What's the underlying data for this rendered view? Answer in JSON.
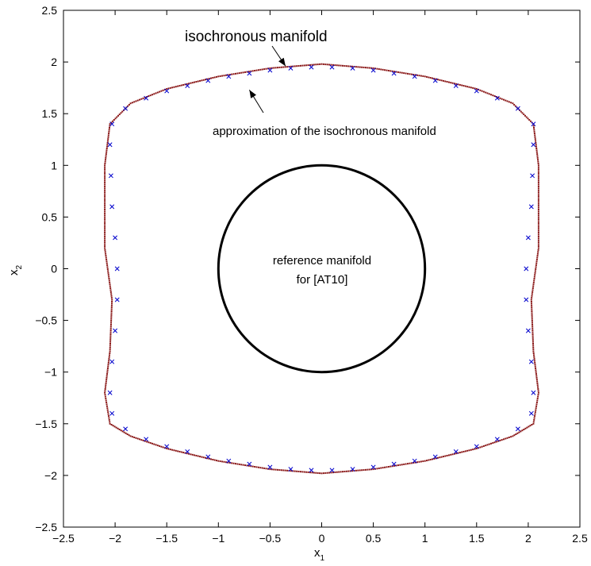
{
  "chart_data": {
    "type": "scatter",
    "title": "",
    "xlabel": "x",
    "xlabel_sub": "1",
    "ylabel": "x",
    "ylabel_sub": "2",
    "xlim": [
      -2.5,
      2.5
    ],
    "ylim": [
      -2.5,
      2.5
    ],
    "xticks": [
      -2.5,
      -2,
      -1.5,
      -1,
      -0.5,
      0,
      0.5,
      1,
      1.5,
      2,
      2.5
    ],
    "yticks": [
      -2.5,
      -2,
      -1.5,
      -1,
      -0.5,
      0,
      0.5,
      1,
      1.5,
      2,
      2.5
    ],
    "xtick_labels": [
      "−2.5",
      "−2",
      "−1.5",
      "−1",
      "−0.5",
      "0",
      "0.5",
      "1",
      "1.5",
      "2",
      "2.5"
    ],
    "ytick_labels": [
      "−2.5",
      "−2",
      "−1.5",
      "−1",
      "−0.5",
      "0",
      "0.5",
      "1",
      "1.5",
      "2",
      "2.5"
    ],
    "grid": false,
    "legend": "none",
    "series": [
      {
        "marker": "dot",
        "color": "#8b1a1a",
        "outline": [
          [
            2.1,
            0.2
          ],
          [
            2.1,
            1.0
          ],
          [
            2.05,
            1.4
          ],
          [
            1.85,
            1.6
          ],
          [
            1.5,
            1.74
          ],
          [
            1.0,
            1.86
          ],
          [
            0.5,
            1.94
          ],
          [
            0.0,
            1.98
          ],
          [
            -0.5,
            1.94
          ],
          [
            -1.0,
            1.86
          ],
          [
            -1.5,
            1.74
          ],
          [
            -1.85,
            1.6
          ],
          [
            -2.05,
            1.4
          ],
          [
            -2.1,
            1.0
          ],
          [
            -2.1,
            0.2
          ],
          [
            -2.03,
            -0.3
          ],
          [
            -2.05,
            -0.8
          ],
          [
            -2.1,
            -1.2
          ],
          [
            -2.05,
            -1.5
          ],
          [
            -1.85,
            -1.62
          ],
          [
            -1.5,
            -1.74
          ],
          [
            -1.0,
            -1.86
          ],
          [
            -0.5,
            -1.94
          ],
          [
            0.0,
            -1.98
          ],
          [
            0.5,
            -1.94
          ],
          [
            1.0,
            -1.86
          ],
          [
            1.5,
            -1.74
          ],
          [
            1.85,
            -1.62
          ],
          [
            2.05,
            -1.5
          ],
          [
            2.1,
            -1.2
          ],
          [
            2.05,
            -0.8
          ],
          [
            2.03,
            -0.3
          ]
        ]
      },
      {
        "marker": "x",
        "color": "#0000cc",
        "points": [
          [
            2.05,
            1.4
          ],
          [
            1.9,
            1.55
          ],
          [
            1.7,
            1.65
          ],
          [
            1.5,
            1.72
          ],
          [
            1.3,
            1.77
          ],
          [
            1.1,
            1.82
          ],
          [
            0.9,
            1.86
          ],
          [
            0.7,
            1.89
          ],
          [
            0.5,
            1.92
          ],
          [
            0.3,
            1.94
          ],
          [
            0.1,
            1.95
          ],
          [
            -0.1,
            1.95
          ],
          [
            -0.3,
            1.94
          ],
          [
            -0.5,
            1.92
          ],
          [
            -0.7,
            1.89
          ],
          [
            -0.9,
            1.86
          ],
          [
            -1.1,
            1.82
          ],
          [
            -1.3,
            1.77
          ],
          [
            -1.5,
            1.72
          ],
          [
            -1.7,
            1.65
          ],
          [
            -1.9,
            1.55
          ],
          [
            -2.03,
            1.4
          ],
          [
            -2.05,
            1.2
          ],
          [
            -2.04,
            0.9
          ],
          [
            -2.03,
            0.6
          ],
          [
            -2.0,
            0.3
          ],
          [
            -1.98,
            0.0
          ],
          [
            -1.98,
            -0.3
          ],
          [
            -2.0,
            -0.6
          ],
          [
            -2.03,
            -0.9
          ],
          [
            -2.05,
            -1.2
          ],
          [
            -2.03,
            -1.4
          ],
          [
            -1.9,
            -1.55
          ],
          [
            -1.7,
            -1.65
          ],
          [
            -1.5,
            -1.72
          ],
          [
            -1.3,
            -1.77
          ],
          [
            -1.1,
            -1.82
          ],
          [
            -0.9,
            -1.86
          ],
          [
            -0.7,
            -1.89
          ],
          [
            -0.5,
            -1.92
          ],
          [
            -0.3,
            -1.94
          ],
          [
            -0.1,
            -1.95
          ],
          [
            0.1,
            -1.95
          ],
          [
            0.3,
            -1.94
          ],
          [
            0.5,
            -1.92
          ],
          [
            0.7,
            -1.89
          ],
          [
            0.9,
            -1.86
          ],
          [
            1.1,
            -1.82
          ],
          [
            1.3,
            -1.77
          ],
          [
            1.5,
            -1.72
          ],
          [
            1.7,
            -1.65
          ],
          [
            1.9,
            -1.55
          ],
          [
            2.03,
            -1.4
          ],
          [
            2.05,
            -1.2
          ],
          [
            2.03,
            -0.9
          ],
          [
            2.0,
            -0.6
          ],
          [
            1.98,
            -0.3
          ],
          [
            1.98,
            0.0
          ],
          [
            2.0,
            0.3
          ],
          [
            2.03,
            0.6
          ],
          [
            2.04,
            0.9
          ],
          [
            2.05,
            1.2
          ]
        ]
      },
      {
        "name": "reference manifold for [AT10]",
        "type": "circle",
        "center": [
          0,
          0
        ],
        "radius": 1.0,
        "color": "#000000"
      }
    ],
    "annotations": [
      {
        "text": "isochronous manifold",
        "arrow_to": [
          -0.35,
          1.96
        ]
      },
      {
        "text": "approximation of the isochronous manifold",
        "arrow_to": [
          -0.7,
          1.73
        ]
      },
      {
        "text_line1": "reference manifold",
        "text_line2": "for [AT10]"
      }
    ]
  }
}
